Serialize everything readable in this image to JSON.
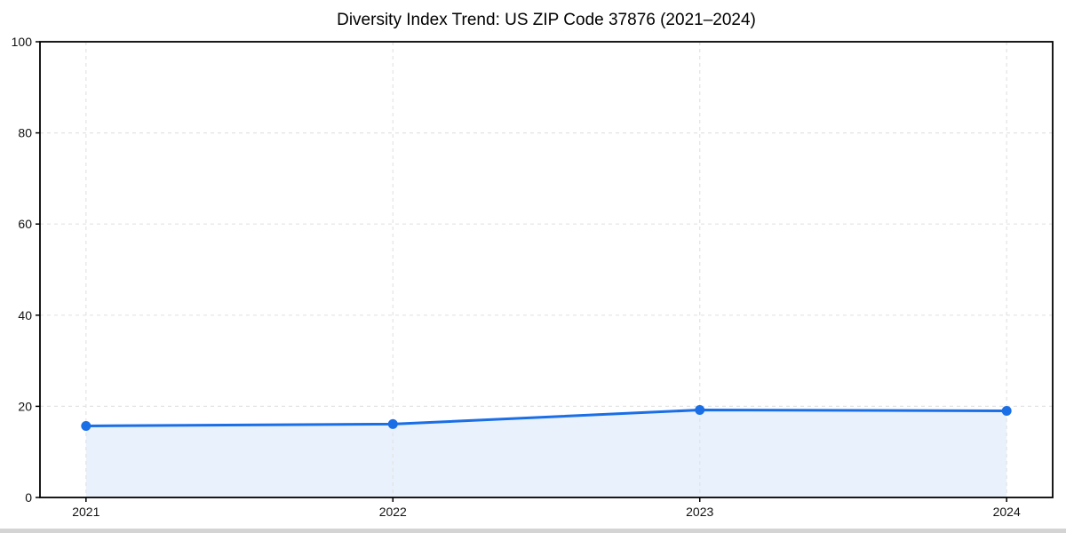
{
  "chart_data": {
    "type": "area",
    "title": "Diversity Index Trend: US ZIP Code 37876 (2021–2024)",
    "xlabel": "",
    "ylabel": "",
    "x": [
      2021,
      2022,
      2023,
      2024
    ],
    "x_labels": [
      "2021",
      "2022",
      "2023",
      "2024"
    ],
    "series": [
      {
        "name": "Diversity Index",
        "values": [
          15.7,
          16.1,
          19.2,
          19.0
        ]
      }
    ],
    "xlim": [
      2020.85,
      2024.15
    ],
    "ylim": [
      0,
      100
    ],
    "yticks": [
      0,
      20,
      40,
      60,
      80,
      100
    ],
    "grid": true,
    "grid_style": "dashed",
    "legend_position": "none",
    "colors": {
      "line": "#1a6ee6",
      "marker": "#1a6ee6",
      "area_fill": "#e9f1fc",
      "grid": "#e3e3e3",
      "spine": "#000000",
      "tick_label": "#111111",
      "title": "#000000"
    }
  }
}
